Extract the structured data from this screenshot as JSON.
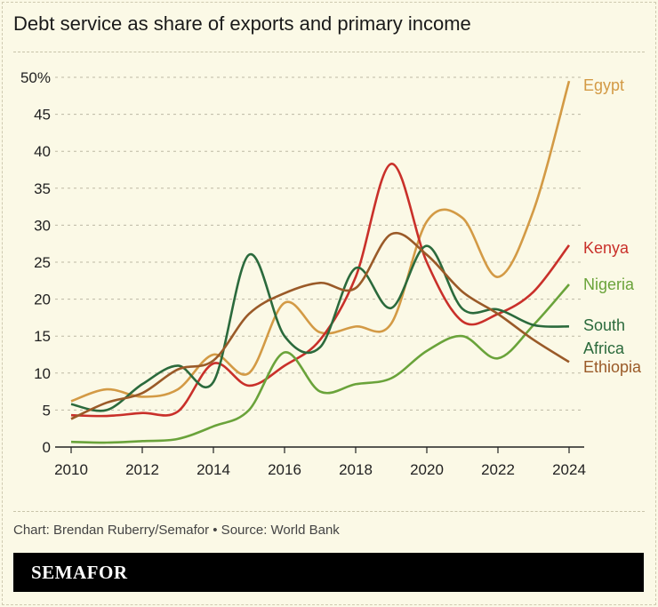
{
  "title": "Debt service as share of exports and primary income",
  "credit": "Chart: Brendan Ruberry/Semafor • Source: World Bank",
  "brand": "SEMAFOR",
  "chart_data": {
    "type": "line",
    "title": "Debt service as share of exports and primary income",
    "x": [
      2010,
      2011,
      2012,
      2013,
      2014,
      2015,
      2016,
      2017,
      2018,
      2019,
      2020,
      2021,
      2022,
      2023,
      2024
    ],
    "xlim": [
      2010,
      2024
    ],
    "ylim": [
      0,
      50
    ],
    "xticks": [
      "2010",
      "2012",
      "2014",
      "2016",
      "2018",
      "2020",
      "2022",
      "2024"
    ],
    "yticks": [
      "0",
      "5",
      "10",
      "15",
      "20",
      "25",
      "30",
      "35",
      "40",
      "45",
      "50%"
    ],
    "grid": "horizontal dashed",
    "legend": "direct labels at line ends (right)",
    "series": [
      {
        "name": "Egypt",
        "color": "#d39a45",
        "values": [
          6.2,
          7.8,
          6.8,
          7.8,
          12.5,
          10,
          19.5,
          15.5,
          16.3,
          16.7,
          30.5,
          31,
          23,
          32,
          49.5
        ]
      },
      {
        "name": "Kenya",
        "color": "#c9302a",
        "values": [
          4.3,
          4.2,
          4.6,
          4.8,
          11.3,
          8.3,
          11,
          14.5,
          23,
          38.3,
          25,
          17,
          18,
          21,
          27.3
        ]
      },
      {
        "name": "Nigeria",
        "color": "#6aa33a",
        "values": [
          0.7,
          0.6,
          0.8,
          1.1,
          2.8,
          5,
          12.8,
          7.5,
          8.5,
          9.3,
          13,
          15,
          12,
          16.5,
          22
        ]
      },
      {
        "name": "South Africa",
        "color": "#2b6a3c",
        "values": [
          5.8,
          5,
          8.5,
          11,
          8.8,
          26,
          15,
          13.5,
          24.2,
          18.8,
          27.2,
          18.7,
          18.6,
          16.5,
          16.3
        ]
      },
      {
        "name": "Ethiopia",
        "color": "#9a5a28",
        "values": [
          3.8,
          6,
          7.3,
          10.5,
          11.7,
          18,
          20.8,
          22.2,
          21.5,
          28.8,
          26,
          21,
          18,
          14.5,
          11.5
        ]
      }
    ]
  }
}
